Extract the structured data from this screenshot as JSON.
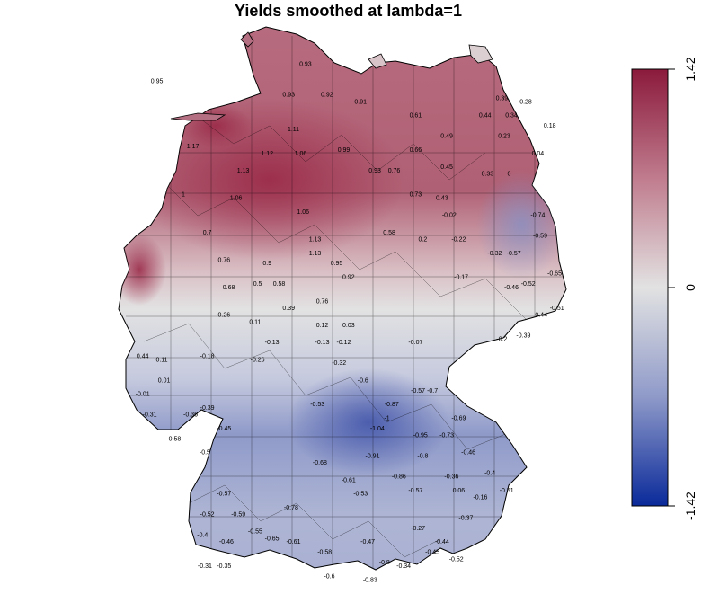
{
  "title": "Yields smoothed at lambda=1",
  "legend": {
    "max_label": "1.42",
    "mid_label": "0",
    "min_label": "-1.42",
    "max": 1.42,
    "min": -1.42,
    "colors": {
      "high": "#8B1A3C",
      "mid": "#E2E2E2",
      "low": "#0A2A9A"
    }
  },
  "map_labels": [
    {
      "value": "0.95",
      "lon": 6.55,
      "lat": 54.25
    },
    {
      "value": "0.93",
      "lon": 9.65,
      "lat": 54.5
    },
    {
      "value": "0.92",
      "lon": 10.1,
      "lat": 54.05
    },
    {
      "value": "0.91",
      "lon": 10.8,
      "lat": 53.95
    },
    {
      "value": "0.93",
      "lon": 9.3,
      "lat": 54.05
    },
    {
      "value": "1.11",
      "lon": 9.4,
      "lat": 53.55
    },
    {
      "value": "1.17",
      "lon": 7.3,
      "lat": 53.3
    },
    {
      "value": "1.12",
      "lon": 8.85,
      "lat": 53.2
    },
    {
      "value": "1.06",
      "lon": 9.55,
      "lat": 53.2
    },
    {
      "value": "0.99",
      "lon": 10.45,
      "lat": 53.25
    },
    {
      "value": "1.13",
      "lon": 8.35,
      "lat": 52.95
    },
    {
      "value": "1.06",
      "lon": 8.2,
      "lat": 52.55
    },
    {
      "value": "1.06",
      "lon": 9.6,
      "lat": 52.35
    },
    {
      "value": "1.13",
      "lon": 9.85,
      "lat": 51.95
    },
    {
      "value": "0.93",
      "lon": 11.1,
      "lat": 52.95
    },
    {
      "value": "0.76",
      "lon": 11.5,
      "lat": 52.95
    },
    {
      "value": "0.73",
      "lon": 11.95,
      "lat": 52.6
    },
    {
      "value": "0.61",
      "lon": 11.95,
      "lat": 53.75
    },
    {
      "value": "0.66",
      "lon": 11.95,
      "lat": 53.25
    },
    {
      "value": "0.49",
      "lon": 12.6,
      "lat": 53.45
    },
    {
      "value": "0.45",
      "lon": 12.6,
      "lat": 53.0
    },
    {
      "value": "0.43",
      "lon": 12.5,
      "lat": 52.55
    },
    {
      "value": "0.39",
      "lon": 13.75,
      "lat": 54.0
    },
    {
      "value": "0.44",
      "lon": 13.4,
      "lat": 53.75
    },
    {
      "value": "0.34",
      "lon": 13.95,
      "lat": 53.75
    },
    {
      "value": "0.28",
      "lon": 14.25,
      "lat": 53.95
    },
    {
      "value": "0.33",
      "lon": 13.45,
      "lat": 52.9
    },
    {
      "value": "0.23",
      "lon": 13.8,
      "lat": 53.45
    },
    {
      "value": "0.04",
      "lon": 14.5,
      "lat": 53.2
    },
    {
      "value": "0.18",
      "lon": 14.75,
      "lat": 53.6
    },
    {
      "value": "0",
      "lon": 13.9,
      "lat": 52.9
    },
    {
      "value": "1",
      "lon": 7.1,
      "lat": 52.6
    },
    {
      "value": "0.7",
      "lon": 7.6,
      "lat": 52.05
    },
    {
      "value": "0.76",
      "lon": 7.95,
      "lat": 51.65
    },
    {
      "value": "0.9",
      "lon": 8.85,
      "lat": 51.6
    },
    {
      "value": "1.13",
      "lon": 9.85,
      "lat": 51.75
    },
    {
      "value": "0.95",
      "lon": 10.3,
      "lat": 51.6
    },
    {
      "value": "0.58",
      "lon": 11.4,
      "lat": 52.05
    },
    {
      "value": "0.2",
      "lon": 12.1,
      "lat": 51.95
    },
    {
      "value": "0.68",
      "lon": 8.05,
      "lat": 51.25
    },
    {
      "value": "0.5",
      "lon": 8.65,
      "lat": 51.3
    },
    {
      "value": "0.58",
      "lon": 9.1,
      "lat": 51.3
    },
    {
      "value": "0.76",
      "lon": 10.0,
      "lat": 51.05
    },
    {
      "value": "0.92",
      "lon": 10.55,
      "lat": 51.4
    },
    {
      "value": "0.39",
      "lon": 9.3,
      "lat": 50.95
    },
    {
      "value": "0.11",
      "lon": 8.6,
      "lat": 50.75
    },
    {
      "value": "0.26",
      "lon": 7.95,
      "lat": 50.85
    },
    {
      "value": "0.12",
      "lon": 10.0,
      "lat": 50.7
    },
    {
      "value": "0.03",
      "lon": 10.55,
      "lat": 50.7
    },
    {
      "value": "-0.02",
      "lon": 12.65,
      "lat": 52.3
    },
    {
      "value": "-0.22",
      "lon": 12.85,
      "lat": 51.95
    },
    {
      "value": "-0.17",
      "lon": 12.9,
      "lat": 51.4
    },
    {
      "value": "-0.32",
      "lon": 13.6,
      "lat": 51.75
    },
    {
      "value": "-0.57",
      "lon": 14.0,
      "lat": 51.75
    },
    {
      "value": "-0.74",
      "lon": 14.5,
      "lat": 52.3
    },
    {
      "value": "-0.59",
      "lon": 14.55,
      "lat": 52.0
    },
    {
      "value": "-0.65",
      "lon": 14.85,
      "lat": 51.45
    },
    {
      "value": "-0.46",
      "lon": 13.95,
      "lat": 51.25
    },
    {
      "value": "-0.52",
      "lon": 14.3,
      "lat": 51.3
    },
    {
      "value": "-0.44",
      "lon": 14.55,
      "lat": 50.85
    },
    {
      "value": "-0.51",
      "lon": 14.9,
      "lat": 50.95
    },
    {
      "value": "-0.39",
      "lon": 14.2,
      "lat": 50.55
    },
    {
      "value": "-0.2",
      "lon": 13.75,
      "lat": 50.5
    },
    {
      "value": "-0.13",
      "lon": 8.95,
      "lat": 50.45
    },
    {
      "value": "-0.13",
      "lon": 10.0,
      "lat": 50.45
    },
    {
      "value": "-0.12",
      "lon": 10.45,
      "lat": 50.45
    },
    {
      "value": "-0.07",
      "lon": 11.95,
      "lat": 50.45
    },
    {
      "value": "0.44",
      "lon": 6.25,
      "lat": 50.25
    },
    {
      "value": "0.11",
      "lon": 6.65,
      "lat": 50.2
    },
    {
      "value": "-0.18",
      "lon": 7.6,
      "lat": 50.25
    },
    {
      "value": "-0.26",
      "lon": 8.65,
      "lat": 50.2
    },
    {
      "value": "-0.32",
      "lon": 10.35,
      "lat": 50.15
    },
    {
      "value": "0.01",
      "lon": 6.7,
      "lat": 49.9
    },
    {
      "value": "-0.01",
      "lon": 6.25,
      "lat": 49.7
    },
    {
      "value": "-0.6",
      "lon": 10.85,
      "lat": 49.9
    },
    {
      "value": "-0.87",
      "lon": 11.45,
      "lat": 49.55
    },
    {
      "value": "-0.57",
      "lon": 12.0,
      "lat": 49.75
    },
    {
      "value": "-0.7",
      "lon": 12.3,
      "lat": 49.75
    },
    {
      "value": "-0.69",
      "lon": 12.85,
      "lat": 49.35
    },
    {
      "value": "-0.53",
      "lon": 9.9,
      "lat": 49.55
    },
    {
      "value": "-0.31",
      "lon": 6.4,
      "lat": 49.4
    },
    {
      "value": "-0.36",
      "lon": 7.25,
      "lat": 49.4
    },
    {
      "value": "-0.39",
      "lon": 7.6,
      "lat": 49.5
    },
    {
      "value": "-0.45",
      "lon": 7.95,
      "lat": 49.2
    },
    {
      "value": "-1.04",
      "lon": 11.15,
      "lat": 49.2
    },
    {
      "value": "-1",
      "lon": 11.35,
      "lat": 49.35
    },
    {
      "value": "-0.95",
      "lon": 12.05,
      "lat": 49.1
    },
    {
      "value": "-0.73",
      "lon": 12.6,
      "lat": 49.1
    },
    {
      "value": "-0.91",
      "lon": 11.05,
      "lat": 48.8
    },
    {
      "value": "-0.8",
      "lon": 12.1,
      "lat": 48.8
    },
    {
      "value": "-0.46",
      "lon": 13.05,
      "lat": 48.85
    },
    {
      "value": "-0.4",
      "lon": 13.5,
      "lat": 48.55
    },
    {
      "value": "-0.58",
      "lon": 6.9,
      "lat": 49.05
    },
    {
      "value": "-0.5",
      "lon": 7.55,
      "lat": 48.85
    },
    {
      "value": "-0.68",
      "lon": 9.95,
      "lat": 48.7
    },
    {
      "value": "-0.61",
      "lon": 10.55,
      "lat": 48.45
    },
    {
      "value": "-0.86",
      "lon": 11.6,
      "lat": 48.5
    },
    {
      "value": "-0.36",
      "lon": 12.7,
      "lat": 48.5
    },
    {
      "value": "0.06",
      "lon": 12.85,
      "lat": 48.3
    },
    {
      "value": "-0.16",
      "lon": 13.3,
      "lat": 48.2
    },
    {
      "value": "-0.51",
      "lon": 13.85,
      "lat": 48.3
    },
    {
      "value": "-0.57",
      "lon": 7.95,
      "lat": 48.25
    },
    {
      "value": "-0.78",
      "lon": 9.35,
      "lat": 48.05
    },
    {
      "value": "-0.53",
      "lon": 10.8,
      "lat": 48.25
    },
    {
      "value": "-0.57",
      "lon": 11.95,
      "lat": 48.3
    },
    {
      "value": "-0.52",
      "lon": 7.6,
      "lat": 47.95
    },
    {
      "value": "-0.59",
      "lon": 8.25,
      "lat": 47.95
    },
    {
      "value": "-0.55",
      "lon": 8.6,
      "lat": 47.7
    },
    {
      "value": "-0.65",
      "lon": 8.95,
      "lat": 47.6
    },
    {
      "value": "-0.61",
      "lon": 9.4,
      "lat": 47.55
    },
    {
      "value": "-0.58",
      "lon": 10.05,
      "lat": 47.4
    },
    {
      "value": "-0.46",
      "lon": 8.0,
      "lat": 47.55
    },
    {
      "value": "-0.4",
      "lon": 7.5,
      "lat": 47.65
    },
    {
      "value": "-0.31",
      "lon": 7.55,
      "lat": 47.2
    },
    {
      "value": "-0.35",
      "lon": 7.95,
      "lat": 47.2
    },
    {
      "value": "-0.6",
      "lon": 10.15,
      "lat": 47.05
    },
    {
      "value": "-0.47",
      "lon": 10.95,
      "lat": 47.55
    },
    {
      "value": "-0.8",
      "lon": 11.3,
      "lat": 47.25
    },
    {
      "value": "-0.34",
      "lon": 11.7,
      "lat": 47.2
    },
    {
      "value": "-0.83",
      "lon": 11.0,
      "lat": 47.0
    },
    {
      "value": "-0.44",
      "lon": 12.5,
      "lat": 47.55
    },
    {
      "value": "-0.45",
      "lon": 12.3,
      "lat": 47.4
    },
    {
      "value": "-0.27",
      "lon": 12.0,
      "lat": 47.75
    },
    {
      "value": "-0.37",
      "lon": 13.0,
      "lat": 47.9
    },
    {
      "value": "-0.52",
      "lon": 12.8,
      "lat": 47.3
    }
  ]
}
